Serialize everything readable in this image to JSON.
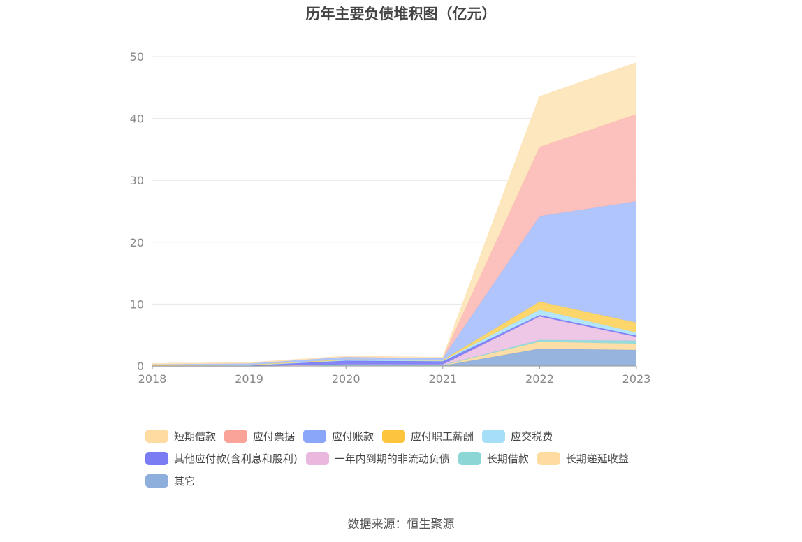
{
  "chart_data": {
    "type": "area",
    "stacked": true,
    "title": "历年主要负债堆积图（亿元）",
    "x": [
      "2018",
      "2019",
      "2020",
      "2021",
      "2022",
      "2023"
    ],
    "ylim": [
      0,
      50
    ],
    "yticks": [
      0,
      10,
      20,
      30,
      40,
      50
    ],
    "grid": true,
    "legend_position": "bottom",
    "series": [
      {
        "name": "其它",
        "color": "#8eaedc",
        "values": [
          0.0,
          0.0,
          0.05,
          0.05,
          2.8,
          2.6
        ]
      },
      {
        "name": "长期递延收益",
        "color": "#fedba0",
        "values": [
          0.0,
          0.0,
          0.1,
          0.1,
          1.1,
          1.0
        ]
      },
      {
        "name": "长期借款",
        "color": "#8fd9d9",
        "values": [
          0.0,
          0.0,
          0.0,
          0.0,
          0.3,
          0.5
        ]
      },
      {
        "name": "一年内到期的非流动负债",
        "color": "#edc2e4",
        "values": [
          0.0,
          0.0,
          0.1,
          0.1,
          3.8,
          0.6
        ]
      },
      {
        "name": "其他应付款(含利息和股利)",
        "color": "#7a7cf4",
        "values": [
          0.1,
          0.1,
          0.6,
          0.5,
          0.2,
          0.2
        ]
      },
      {
        "name": "应交税费",
        "color": "#aee3f9",
        "values": [
          0.0,
          0.05,
          0.1,
          0.1,
          0.9,
          0.5
        ]
      },
      {
        "name": "应付职工薪酬",
        "color": "#fdd35e",
        "values": [
          0.05,
          0.05,
          0.1,
          0.1,
          1.3,
          1.6
        ]
      },
      {
        "name": "应付账款",
        "color": "#a9c0fc",
        "values": [
          0.2,
          0.3,
          0.4,
          0.3,
          13.8,
          19.6
        ]
      },
      {
        "name": "应付票据",
        "color": "#fcbcb6",
        "values": [
          0.0,
          0.0,
          0.1,
          0.1,
          11.2,
          14.1
        ]
      },
      {
        "name": "短期借款",
        "color": "#fde5b8",
        "values": [
          0.0,
          0.0,
          0.0,
          0.0,
          8.1,
          8.3
        ]
      }
    ]
  },
  "legend": [
    {
      "label": "短期借款",
      "color": "#fedba0"
    },
    {
      "label": "应付票据",
      "color": "#f9a399"
    },
    {
      "label": "应付账款",
      "color": "#8aa6f9"
    },
    {
      "label": "应付职工薪酬",
      "color": "#fdc43e"
    },
    {
      "label": "应交税费",
      "color": "#a6def8"
    },
    {
      "label": "其他应付款(含利息和股利)",
      "color": "#7a7cf4"
    },
    {
      "label": "一年内到期的非流动负债",
      "color": "#eab8de"
    },
    {
      "label": "长期借款",
      "color": "#8dd6d6"
    },
    {
      "label": "长期递延收益",
      "color": "#fedba0"
    },
    {
      "label": "其它",
      "color": "#8eaedc"
    }
  ],
  "source": "数据来源：恒生聚源"
}
